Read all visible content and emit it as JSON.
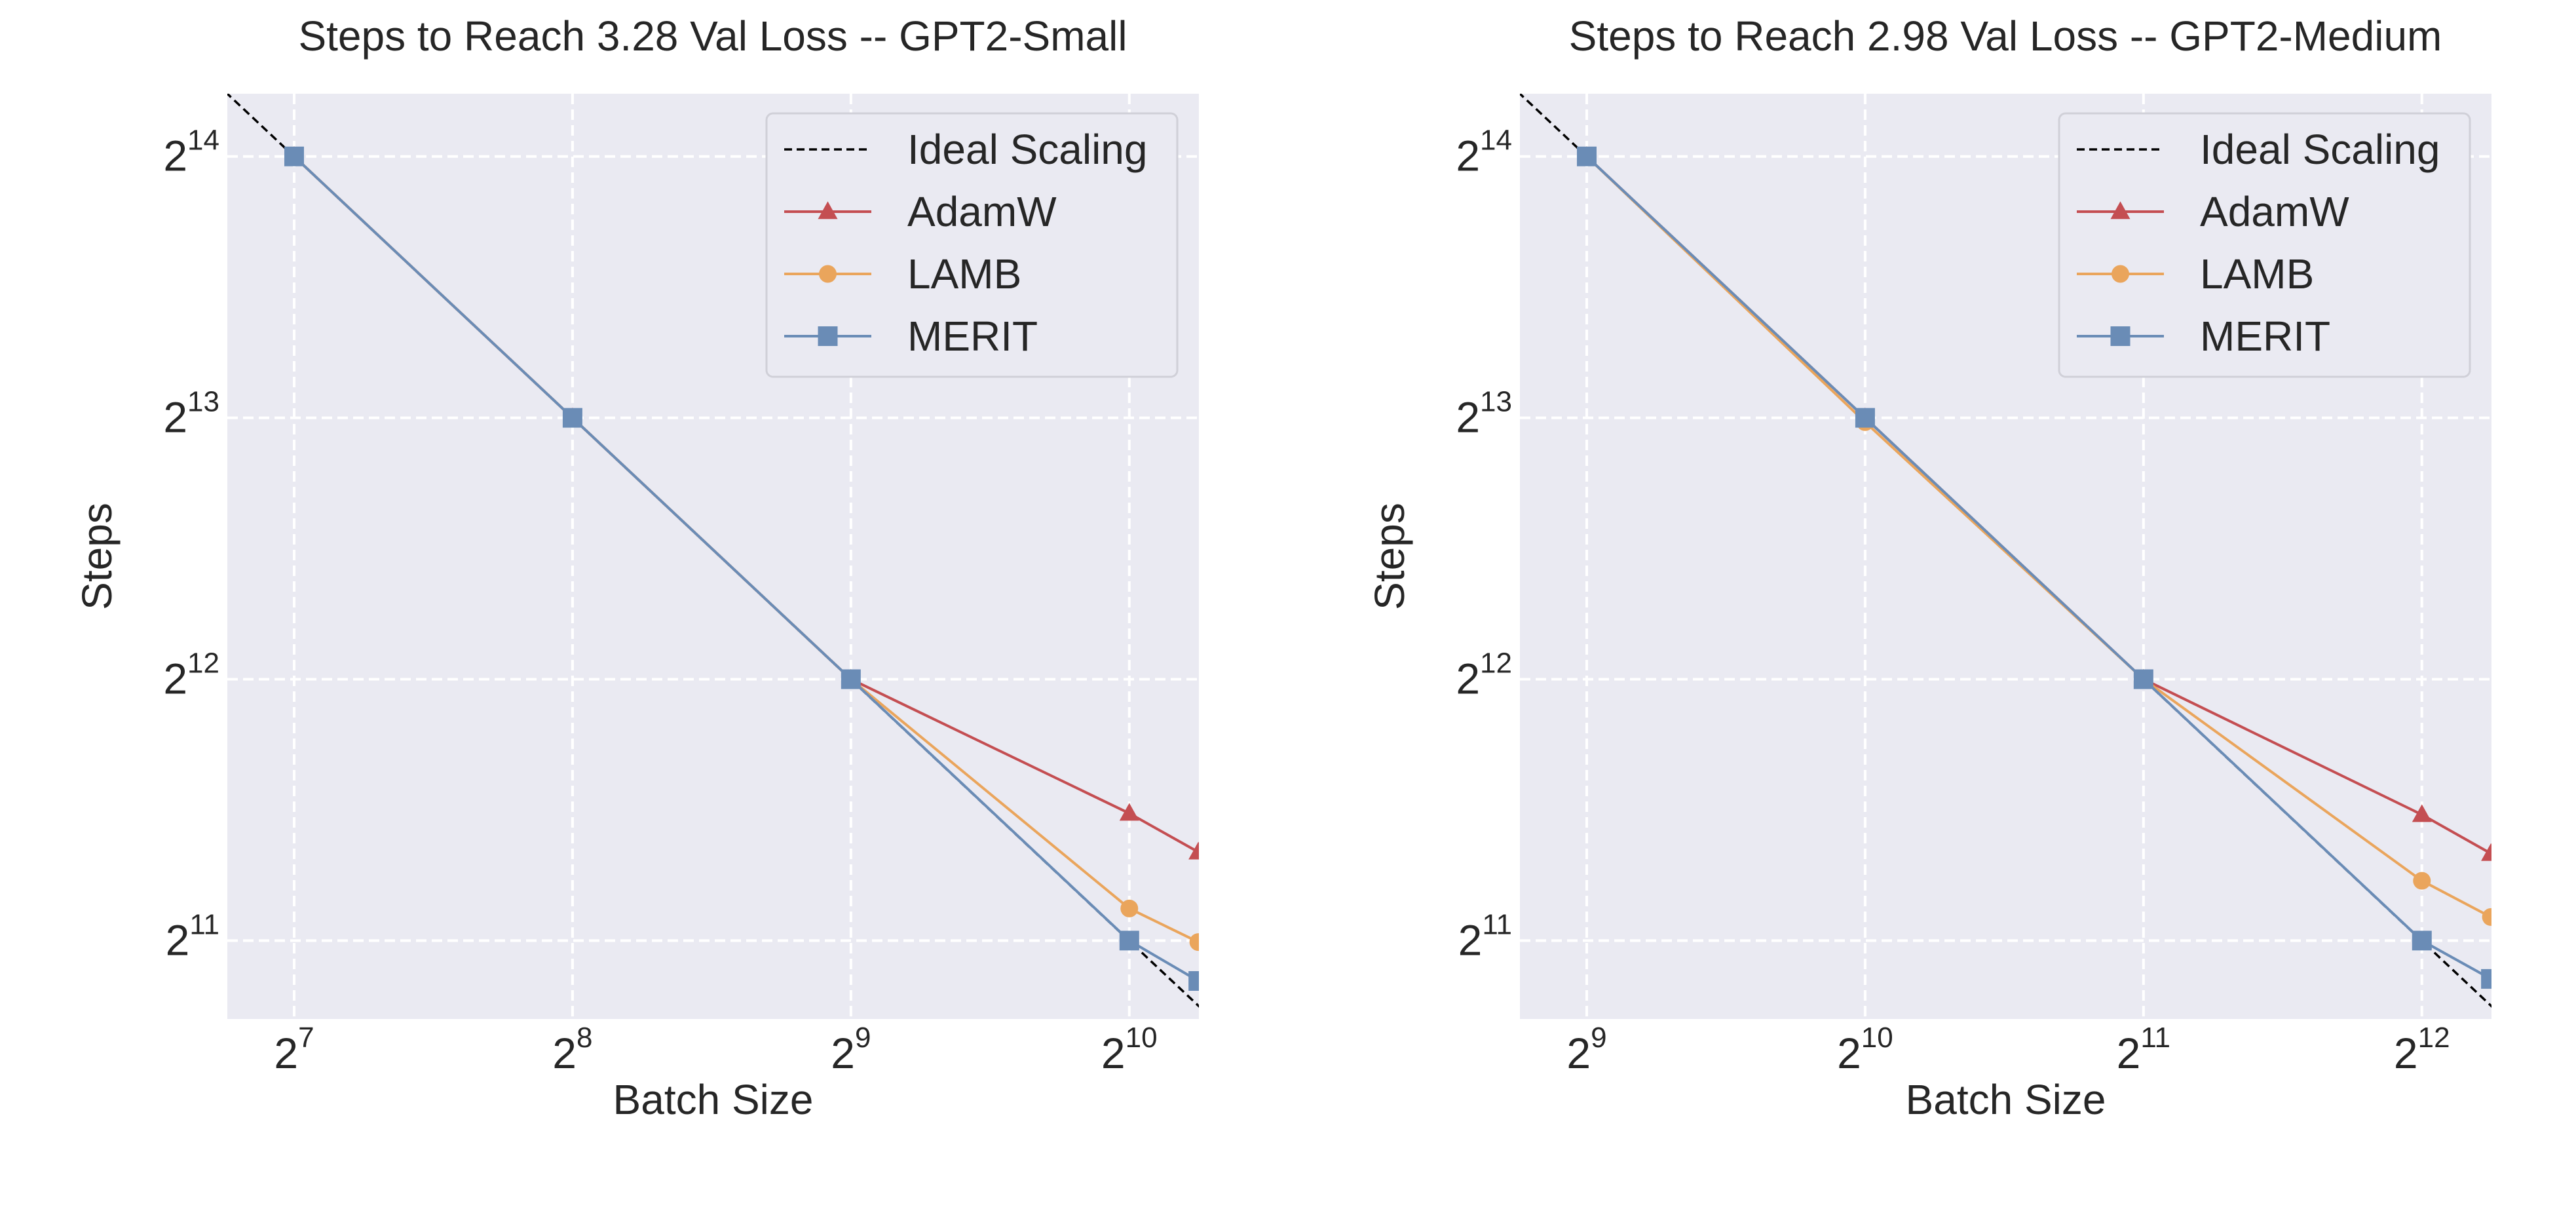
{
  "figure": {
    "background": "#ffffff",
    "plot_background": "#eaeaf2",
    "grid_color": "#ffffff"
  },
  "series_styles": [
    {
      "name": "Ideal Scaling",
      "color": "#000000",
      "marker": "none",
      "dash": true
    },
    {
      "name": "AdamW",
      "color": "#c44e52",
      "marker": "triangle",
      "dash": false
    },
    {
      "name": "LAMB",
      "color": "#eaa55c",
      "marker": "circle",
      "dash": false
    },
    {
      "name": "MERIT",
      "color": "#6a8cb6",
      "marker": "square",
      "dash": false
    }
  ],
  "chart_data": [
    {
      "type": "line",
      "title": "Steps to Reach 3.28 Val Loss -- GPT2-Small",
      "xlabel": "Batch Size",
      "ylabel": "Steps",
      "x_scale": "log2",
      "y_scale": "log2",
      "xlim_log2": [
        6.76,
        10.25
      ],
      "ylim_log2": [
        10.7,
        14.24
      ],
      "x_ticks": [
        {
          "base": "2",
          "exp": "7",
          "log2": 7
        },
        {
          "base": "2",
          "exp": "8",
          "log2": 8
        },
        {
          "base": "2",
          "exp": "9",
          "log2": 9
        },
        {
          "base": "2",
          "exp": "10",
          "log2": 10
        }
      ],
      "y_ticks": [
        {
          "base": "2",
          "exp": "11",
          "log2": 11
        },
        {
          "base": "2",
          "exp": "12",
          "log2": 12
        },
        {
          "base": "2",
          "exp": "13",
          "log2": 13
        },
        {
          "base": "2",
          "exp": "14",
          "log2": 14
        }
      ],
      "grid": true,
      "legend": {
        "position": "top-right",
        "entries": [
          "Ideal Scaling",
          "AdamW",
          "LAMB",
          "MERIT"
        ]
      },
      "ideal_scaling": {
        "x": [
          90,
          1300
        ],
        "y": [
          23300,
          1612
        ]
      },
      "series": [
        {
          "name": "AdamW",
          "x": [
            128,
            256,
            512,
            1024,
            1216
          ],
          "y": [
            16384,
            8192,
            4096,
            2870,
            2590
          ]
        },
        {
          "name": "LAMB",
          "x": [
            128,
            256,
            512,
            1024,
            1216
          ],
          "y": [
            16384,
            8192,
            4096,
            2230,
            2040
          ]
        },
        {
          "name": "MERIT",
          "x": [
            128,
            256,
            512,
            1024,
            1216
          ],
          "y": [
            16384,
            8192,
            4096,
            2048,
            1840
          ]
        }
      ]
    },
    {
      "type": "line",
      "title": "Steps to Reach 2.98 Val Loss -- GPT2-Medium",
      "xlabel": "Batch Size",
      "ylabel": "Steps",
      "x_scale": "log2",
      "y_scale": "log2",
      "xlim_log2": [
        8.76,
        12.25
      ],
      "ylim_log2": [
        10.7,
        14.24
      ],
      "x_ticks": [
        {
          "base": "2",
          "exp": "9",
          "log2": 9
        },
        {
          "base": "2",
          "exp": "10",
          "log2": 10
        },
        {
          "base": "2",
          "exp": "11",
          "log2": 11
        },
        {
          "base": "2",
          "exp": "12",
          "log2": 12
        }
      ],
      "y_ticks": [
        {
          "base": "2",
          "exp": "11",
          "log2": 11
        },
        {
          "base": "2",
          "exp": "12",
          "log2": 12
        },
        {
          "base": "2",
          "exp": "13",
          "log2": 13
        },
        {
          "base": "2",
          "exp": "14",
          "log2": 14
        }
      ],
      "grid": true,
      "legend": {
        "position": "top-right",
        "entries": [
          "Ideal Scaling",
          "AdamW",
          "LAMB",
          "MERIT"
        ]
      },
      "ideal_scaling": {
        "x": [
          360,
          5200
        ],
        "y": [
          23300,
          1612
        ]
      },
      "series": [
        {
          "name": "AdamW",
          "x": [
            512,
            1024,
            2048,
            4096,
            4864
          ],
          "y": [
            16384,
            8192,
            4096,
            2860,
            2580
          ]
        },
        {
          "name": "LAMB",
          "x": [
            512,
            1024,
            2048,
            4096,
            4864
          ],
          "y": [
            16384,
            8100,
            4096,
            2400,
            2180
          ]
        },
        {
          "name": "MERIT",
          "x": [
            512,
            1024,
            2048,
            4096,
            4864
          ],
          "y": [
            16384,
            8192,
            4096,
            2048,
            1850
          ]
        }
      ]
    }
  ]
}
